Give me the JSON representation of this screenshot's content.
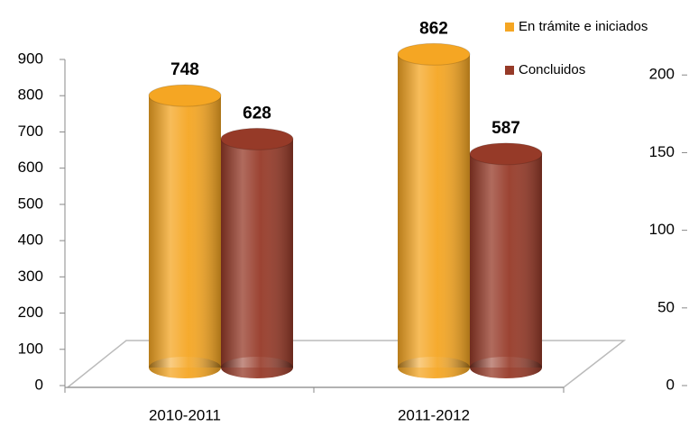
{
  "chart_data": {
    "type": "bar",
    "categories": [
      "2010-2011",
      "2011-2012"
    ],
    "series": [
      {
        "name": "En trámite e iniciados",
        "color": "#f5a623",
        "values": [
          748,
          862
        ]
      },
      {
        "name": "Concluidos",
        "color": "#963a28",
        "values": [
          628,
          587
        ]
      }
    ],
    "ylim": [
      0,
      900
    ],
    "yticks": [
      0,
      100,
      200,
      300,
      400,
      500,
      600,
      700,
      800,
      900
    ],
    "y2lim": [
      0,
      210
    ],
    "y2ticks": [
      0,
      50,
      100,
      150,
      200
    ],
    "legend": "top-right"
  }
}
